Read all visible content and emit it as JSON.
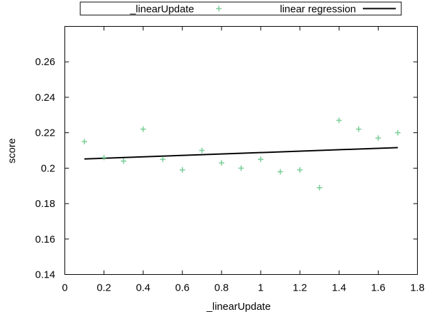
{
  "chart_data": {
    "type": "scatter",
    "title": "",
    "xlabel": "_linearUpdate",
    "ylabel": "score",
    "xlim": [
      0,
      1.8
    ],
    "ylim": [
      0.14,
      0.28
    ],
    "xticks": [
      0,
      0.2,
      0.4,
      0.6,
      0.8,
      1,
      1.2,
      1.4,
      1.6,
      1.8
    ],
    "xtick_labels": [
      "0",
      "0.2",
      "0.4",
      "0.6",
      "0.8",
      "1",
      "1.2",
      "1.4",
      "1.6",
      "1.8"
    ],
    "yticks": [
      0.14,
      0.16,
      0.18,
      0.2,
      0.22,
      0.24,
      0.26
    ],
    "ytick_labels": [
      "0.14",
      "0.16",
      "0.18",
      "0.2",
      "0.22",
      "0.24",
      "0.26"
    ],
    "grid": false,
    "legend_position": "top-center-outside",
    "series": [
      {
        "name": "_linearUpdate",
        "kind": "points",
        "marker": "plus",
        "color": "#7ccf9a",
        "x": [
          0.1,
          0.2,
          0.3,
          0.4,
          0.5,
          0.6,
          0.7,
          0.8,
          0.9,
          1.0,
          1.1,
          1.2,
          1.3,
          1.4,
          1.5,
          1.6,
          1.7
        ],
        "y": [
          0.215,
          0.206,
          0.204,
          0.222,
          0.205,
          0.199,
          0.21,
          0.203,
          0.2,
          0.205,
          0.198,
          0.199,
          0.189,
          0.227,
          0.222,
          0.217,
          0.22
        ]
      },
      {
        "name": "linear regression",
        "kind": "line",
        "color": "#000000",
        "x": [
          0.1,
          1.7
        ],
        "y": [
          0.2052,
          0.2116
        ]
      }
    ]
  }
}
